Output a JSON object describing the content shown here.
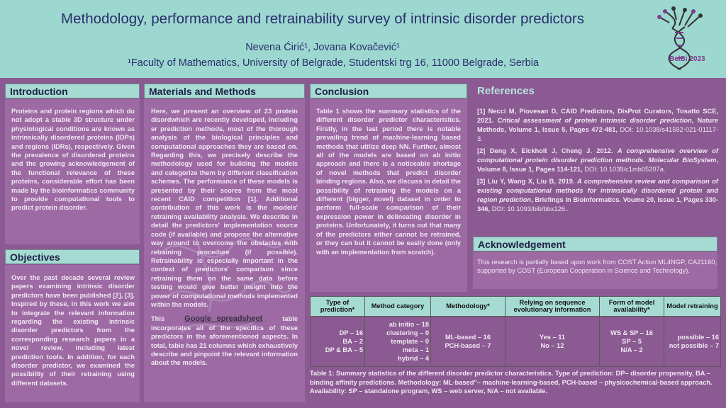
{
  "header": {
    "title": "Methodology, performance and retrainability survey of intrinsic disorder predictors",
    "authors": "Nevena Ćirić¹, Jovana Kovačević¹",
    "affiliation": "¹Faculty of Mathematics, University of Belgrade, Studentski trg 16, 11000 Belgrade, Serbia",
    "logo_text": "BelBi 2023"
  },
  "introduction": {
    "heading": "Introduction",
    "text": "Proteins and protein regions which do not adopt a stable 3D structure under physiological conditions are known as intrinsically disordered proteins (IDPs) and regions (IDRs), respectively. Given the prevalence of disordered proteins and the growing acknowledgement of the functional relevance of these proteins, considerable effort has been made by the bioinformatics community to provide computational tools to predict protein disorder."
  },
  "objectives": {
    "heading": "Objectives",
    "text": "Over the past decade several review papers examining intrinsic disorder predictors have been published [2], [3]. Inspired by these, in this work we aim to integrate the relevant information regarding the existing intrinsic disorder predictors from the corresponding research papers in a novel review, including latest prediction tools. In addition, for each disorder predictor, we examined the possibility of their retraining using different datasets."
  },
  "methods": {
    "heading": "Materials and Methods",
    "text1": "Here, we present an overview of 23 protein disordwhich are recently developed, including er prediction methods, most of the thorough analysis of the biological principles and computational approaches they are based on. Regarding this, we precisely describe the methodology used for building the models and categorize them by different classification schemes. The performance of these models is presented by their scores from the most recent CAID competition [1]. Additional contribution of this work is the models' retraining availability analysis. We describe in detail the predictors' implementation source code (if available) and propose the alternative way around to overcome the obstacles with retraining procedure (if possible). Retrainability is especially important in the context of predictors' comparison since retraining them on the same data before testing would give better insight into the power of computational methods implemented within the models.",
    "text2_pre": "This",
    "link": "Google spreadsheet",
    "text2_post": "table incorporates all of the specifics of these predictors in the aforementioned aspects. In total, table has 21 columns which exhaustively describe and pinpoint the relevant information about the models."
  },
  "conclusion": {
    "heading": "Conclusion",
    "text": "Table 1 shows the summary statistics of the different disorder predictor characteristics. Firstly, in the last period there is notable prevailing trend of machine-learning based methods that utilize deep NN. Further, almost all of the models are based on ab initio approach and there is a noticeable shortage of novel methods that predict disorder binding regions. Also, we discuss in detail the possibility of retraining the models on a different (bigger, novel) dataset in order to perform full-scale comparison of their expression power in delineating disorder in proteins. Unfortunately, it turns out that many of the predictors either cannot be retrained, or they can but it cannot be easily done (only with an implementation from scratch)."
  },
  "references": {
    "heading": "References",
    "items": [
      {
        "plain1": "[1] Necci M, Piovesan D, CAID Predictors, DisProt Curators, Tosatto SCE, 2021. ",
        "italic": "Critical assessment of protein intrinsic disorder prediction",
        "plain2": ", Nature Methods, Volume 1, Issue 5, Pages 472-481, ",
        "doi": "DOI: 10.1038/s41592-021-01117-3."
      },
      {
        "plain1": "[2] Deng X, Eickholt J, Cheng J. 2012. ",
        "italic": "A comprehensive overview of computational protein disorder prediction methods. Molecular BioSystem",
        "plain2": ", Volume 8, Issue 1, Pages 114-121, ",
        "doi": "DOI: 10.1039/c1mb05207a."
      },
      {
        "plain1": "[3] Liu Y, Wang X, Liu B, 2019. ",
        "italic": "A comprehensive review and comparison of existing computational methods for intrinsically disordered protein and region prediction",
        "plain2": ", Briefings in Bioinformatics. Voume 20, Issue 1, Pages 330-346, ",
        "doi": "DOI: 10.1093/bib/bbx126.."
      }
    ]
  },
  "acknowledgement": {
    "heading": "Acknowledgement",
    "text": "This research is partially based upon work from COST Action ML4NGP, CA21160, supported by COST (European Cooperation in Science and Technology)."
  },
  "table": {
    "headers": [
      "Type of prediction*",
      "Method category",
      "Methodology*",
      "Relying on sequence evolutionary information",
      "Form of model availability*",
      "Model retraining"
    ],
    "cells": [
      [
        "DP – 16",
        "BA – 2",
        "DP & BA – 5"
      ],
      [
        "ab initio – 18",
        "clustering – 0",
        "template – 0",
        "meta – 1",
        "hybrid – 4"
      ],
      [
        "ML-based – 16",
        "PCH-based – 7"
      ],
      [
        "Yes – 11",
        "No – 12"
      ],
      [
        "WS & SP – 16",
        "SP – 5",
        "N/A – 2"
      ],
      [
        "possible – 16",
        "not possible – 7"
      ]
    ],
    "caption": "Table 1: Summary statistics of the different disorder predictor characteristics. Type of prediction:  DP– disorder propensity, BA –  binding affinity predictions. Methodology: ML-based\"–  machine-learning-based, PCH-based –  physicochemical-based approach. Availability:  SP – standalone program, WS – web server, N/A – not available."
  }
}
